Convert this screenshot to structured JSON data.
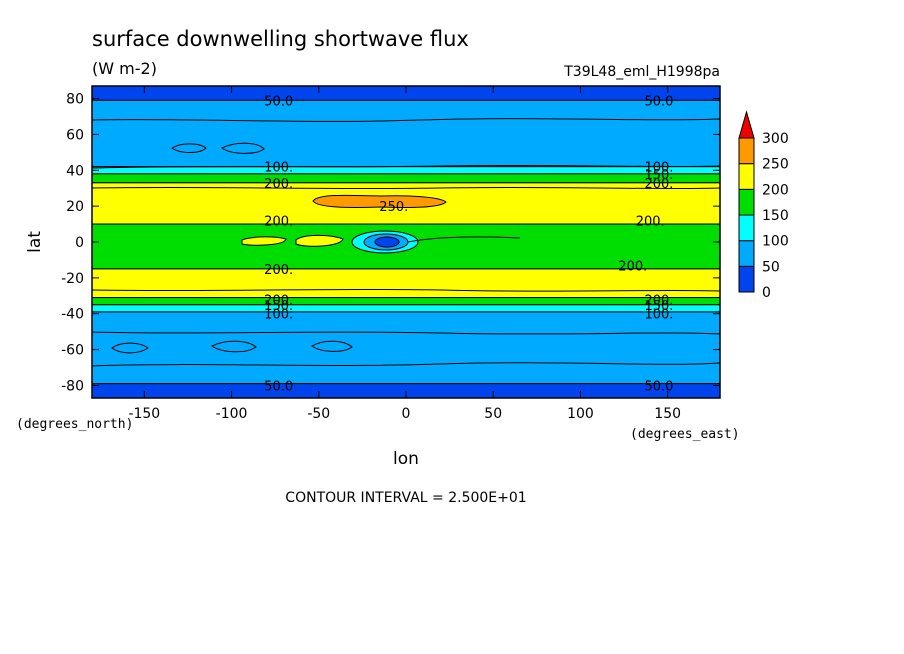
{
  "chart_data": {
    "type": "heatmap",
    "title": "surface downwelling shortwave flux",
    "units": "(W m-2)",
    "run_label": "T39L48_eml_H1998pa",
    "xlabel": "lon",
    "ylabel": "lat",
    "x_unit": "(degrees_east)",
    "y_unit": "(degrees_north)",
    "xlim": [
      -180,
      180
    ],
    "ylim": [
      -87,
      87
    ],
    "x_ticks": [
      -150,
      -100,
      -50,
      0,
      50,
      100,
      150
    ],
    "x_tick_labels": [
      "-150",
      "-100",
      "-50",
      "0",
      "50",
      "100",
      "150"
    ],
    "y_ticks": [
      80,
      60,
      40,
      20,
      0,
      -20,
      -40,
      -60,
      -80
    ],
    "y_tick_labels": [
      "80",
      "60",
      "40",
      "20",
      "0",
      "-20",
      "-40",
      "-60",
      "-80"
    ],
    "contour_interval": "CONTOUR INTERVAL = 2.500E+01",
    "legend": {
      "placement": "right",
      "levels": [
        0,
        50,
        100,
        150,
        200,
        250,
        300
      ],
      "labels": [
        "0",
        "50",
        "100",
        "150",
        "200",
        "250",
        "300"
      ],
      "colors": [
        "#0044ee",
        "#00aaff",
        "#00ffff",
        "#00dd00",
        "#ffff00",
        "#ff9900"
      ],
      "overflow_color": "#ee0000"
    },
    "bands": [
      {
        "lat_from": 87,
        "lat_to": 79,
        "level": 0
      },
      {
        "lat_from": 79,
        "lat_to": 42,
        "level": 1
      },
      {
        "lat_from": 42,
        "lat_to": 38,
        "level": 2
      },
      {
        "lat_from": 38,
        "lat_to": 33,
        "level": 3
      },
      {
        "lat_from": 33,
        "lat_to": 10,
        "level": 4
      },
      {
        "lat_from": 10,
        "lat_to": -15,
        "level": 3
      },
      {
        "lat_from": -15,
        "lat_to": -31,
        "level": 4
      },
      {
        "lat_from": -31,
        "lat_to": -35,
        "level": 3
      },
      {
        "lat_from": -35,
        "lat_to": -39,
        "level": 2
      },
      {
        "lat_from": -39,
        "lat_to": -79,
        "level": 1
      },
      {
        "lat_from": -79,
        "lat_to": -87,
        "level": 0
      }
    ],
    "contour_labels": [
      {
        "text": "50.0",
        "lon": -73,
        "lat": 79
      },
      {
        "text": "50.0",
        "lon": 145,
        "lat": 79
      },
      {
        "text": "100.",
        "lon": -73,
        "lat": 42
      },
      {
        "text": "100.",
        "lon": 145,
        "lat": 42
      },
      {
        "text": "150.",
        "lon": 145,
        "lat": 38
      },
      {
        "text": "200.",
        "lon": -73,
        "lat": 33
      },
      {
        "text": "200.",
        "lon": 145,
        "lat": 33
      },
      {
        "text": "250.",
        "lon": -7,
        "lat": 20
      },
      {
        "text": "200.",
        "lon": -73,
        "lat": 12
      },
      {
        "text": "200.",
        "lon": 140,
        "lat": 12
      },
      {
        "text": "200.",
        "lon": -73,
        "lat": -15
      },
      {
        "text": "200.",
        "lon": 130,
        "lat": -13
      },
      {
        "text": "200.",
        "lon": -73,
        "lat": -32
      },
      {
        "text": "200.",
        "lon": 145,
        "lat": -32
      },
      {
        "text": "150.",
        "lon": -73,
        "lat": -35
      },
      {
        "text": "150.",
        "lon": 145,
        "lat": -35
      },
      {
        "text": "100.",
        "lon": -73,
        "lat": -40
      },
      {
        "text": "100.",
        "lon": 145,
        "lat": -40
      },
      {
        "text": "50.0",
        "lon": -73,
        "lat": -80
      },
      {
        "text": "50.0",
        "lon": 145,
        "lat": -80
      }
    ]
  }
}
